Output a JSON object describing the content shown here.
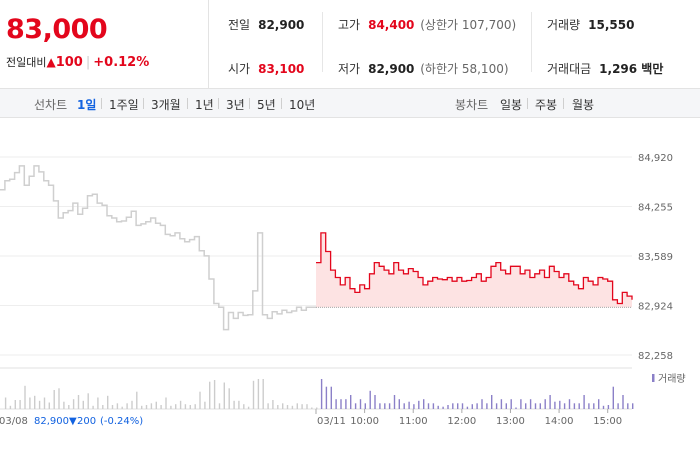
{
  "quote": {
    "price": "83,000",
    "change_label": "전일대비",
    "change_arrow": "▲",
    "change_value": "100",
    "change_rate": "+0.12%"
  },
  "stats": {
    "prev_close": {
      "label": "전일",
      "value": "82,900"
    },
    "high": {
      "label": "고가",
      "value": "84,400",
      "sub": "(상한가 107,700)"
    },
    "volume": {
      "label": "거래량",
      "value": "15,550"
    },
    "open": {
      "label": "시가",
      "value": "83,100"
    },
    "low": {
      "label": "저가",
      "value": "82,900",
      "sub": "(하한가 58,100)"
    },
    "amount": {
      "label": "거래대금",
      "value": "1,296 백만"
    }
  },
  "tabs": {
    "line_title": "선차트",
    "line_periods": [
      "1일",
      "1주일",
      "3개월",
      "1년",
      "3년",
      "5년",
      "10년"
    ],
    "candle_title": "봉차트",
    "candle_periods": [
      "일봉",
      "주봉",
      "월봉"
    ]
  },
  "colors": {
    "up": "#e3061c",
    "down": "#1262e0",
    "prev_line": "#cfcfcf",
    "fill": "#fde3e3"
  },
  "chart_data": {
    "type": "line",
    "y_ticks": [
      "84,920",
      "84,255",
      "83,589",
      "82,924",
      "82,258"
    ],
    "ylim": [
      82258,
      84920
    ],
    "x_ticks": [
      "03/11",
      "10:00",
      "11:00",
      "12:00",
      "13:00",
      "14:00",
      "15:00"
    ],
    "volume_legend": "거래량",
    "prev_day": {
      "date": "03/08",
      "close": "82,900",
      "change_arrow": "▼",
      "change": "200",
      "change_rate": "(-0.24%)",
      "times": [
        "09:00",
        "09:06",
        "09:12",
        "09:18",
        "09:24",
        "09:30",
        "09:36",
        "09:42",
        "09:48",
        "09:54",
        "10:00",
        "10:06",
        "10:12",
        "10:18",
        "10:24",
        "10:30",
        "10:36",
        "10:42",
        "10:48",
        "10:54",
        "11:00",
        "11:06",
        "11:12",
        "11:18",
        "11:24",
        "11:30",
        "11:36",
        "11:42",
        "11:48",
        "11:54",
        "12:00",
        "12:06",
        "12:12",
        "12:18",
        "12:24",
        "12:30",
        "12:36",
        "12:42",
        "12:48",
        "12:54",
        "13:00",
        "13:06",
        "13:12",
        "13:18",
        "13:24",
        "13:30",
        "13:36",
        "13:42",
        "13:48",
        "13:54",
        "14:00",
        "14:06",
        "14:12",
        "14:18",
        "14:24",
        "14:30",
        "14:36",
        "14:42",
        "14:48",
        "14:54",
        "15:00",
        "15:06",
        "15:12",
        "15:18",
        "15:24",
        "15:30"
      ],
      "values": [
        84480,
        84600,
        84620,
        84710,
        84800,
        84540,
        84660,
        84800,
        84720,
        84600,
        84540,
        84330,
        84100,
        84170,
        84200,
        84300,
        84150,
        84230,
        84400,
        84420,
        84300,
        84270,
        84130,
        84100,
        84050,
        84060,
        84110,
        84190,
        84000,
        84020,
        84050,
        84100,
        84030,
        84000,
        83880,
        83860,
        83900,
        83820,
        83780,
        83810,
        83850,
        83660,
        83590,
        83280,
        82950,
        82900,
        82600,
        82830,
        82750,
        82830,
        82790,
        82800,
        83120,
        83900,
        82800,
        82750,
        82840,
        82810,
        82860,
        82830,
        82850,
        82900,
        82860,
        82900,
        82900,
        82900
      ]
    },
    "intraday": {
      "times": [
        "09:00",
        "09:06",
        "09:12",
        "09:18",
        "09:24",
        "09:30",
        "09:36",
        "09:42",
        "09:48",
        "09:54",
        "10:00",
        "10:06",
        "10:12",
        "10:18",
        "10:24",
        "10:30",
        "10:36",
        "10:42",
        "10:48",
        "10:54",
        "11:00",
        "11:06",
        "11:12",
        "11:18",
        "11:24",
        "11:30",
        "11:36",
        "11:42",
        "11:48",
        "11:54",
        "12:00",
        "12:06",
        "12:12",
        "12:18",
        "12:24",
        "12:30",
        "12:36",
        "12:42",
        "12:48",
        "12:54",
        "13:00",
        "13:06",
        "13:12",
        "13:18",
        "13:24",
        "13:30",
        "13:36",
        "13:42",
        "13:48",
        "13:54",
        "14:00",
        "14:06",
        "14:12",
        "14:18",
        "14:24",
        "14:30",
        "14:36",
        "14:42",
        "14:48",
        "14:54",
        "15:00",
        "15:06",
        "15:12",
        "15:18",
        "15:24",
        "15:30"
      ],
      "values": [
        83500,
        83900,
        83650,
        83400,
        83300,
        83200,
        83300,
        83150,
        83100,
        83200,
        83150,
        83350,
        83500,
        83450,
        83400,
        83350,
        83500,
        83400,
        83350,
        83420,
        83380,
        83300,
        83200,
        83250,
        83300,
        83280,
        83270,
        83300,
        83250,
        83300,
        83250,
        83260,
        83300,
        83350,
        83250,
        83300,
        83450,
        83500,
        83400,
        83350,
        83450,
        83450,
        83350,
        83400,
        83300,
        83350,
        83400,
        83300,
        83450,
        83380,
        83300,
        83350,
        83250,
        83200,
        83150,
        83300,
        83250,
        83200,
        83300,
        83280,
        83250,
        83000,
        82950,
        83100,
        83050,
        83000
      ]
    }
  }
}
